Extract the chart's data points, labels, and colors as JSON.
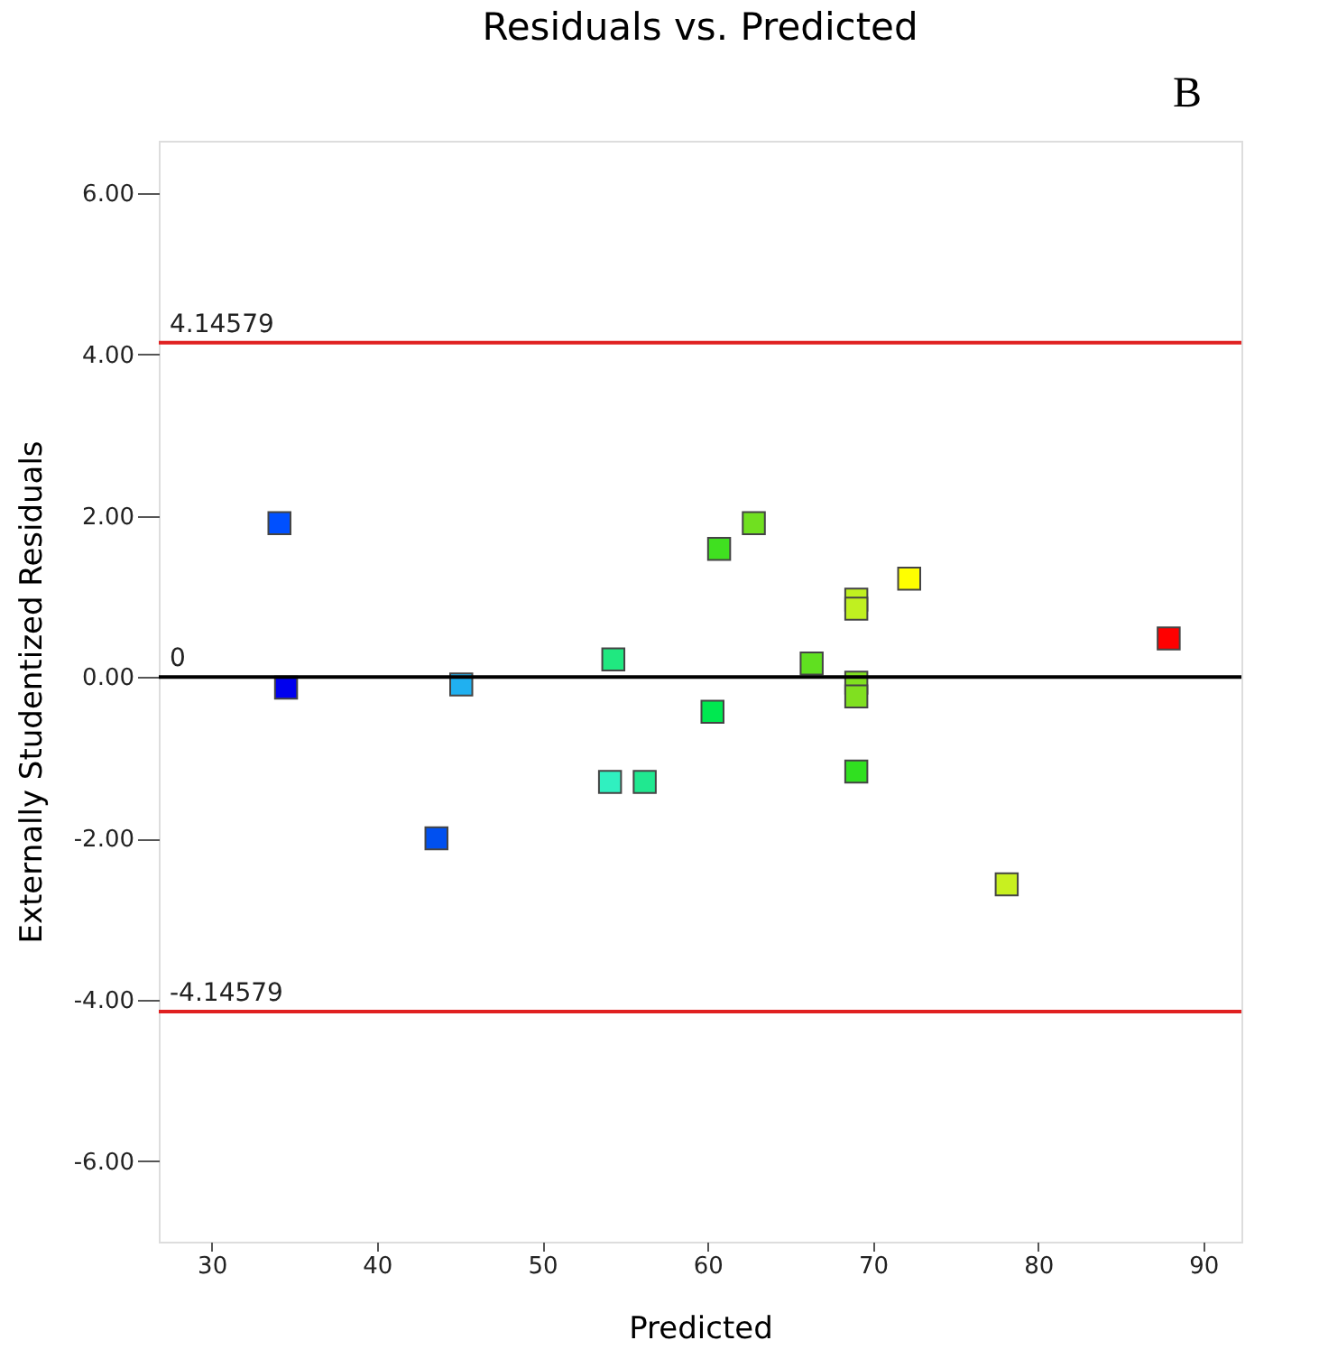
{
  "chart_data": {
    "type": "scatter",
    "title": "Residuals vs. Predicted",
    "xlabel": "Predicted",
    "ylabel": "Externally Studentized Residuals",
    "annotations": [
      "B"
    ],
    "marker": "square",
    "grid": false,
    "xlim": [
      26.8,
      92.3
    ],
    "xticks": [
      30,
      40,
      50,
      60,
      70,
      80,
      90
    ],
    "ylim": [
      -7.0,
      6.65
    ],
    "yticks": [
      {
        "value": -6,
        "label": "-6.00"
      },
      {
        "value": -4,
        "label": "-4.00"
      },
      {
        "value": -2,
        "label": "-2.00"
      },
      {
        "value": 0,
        "label": "0.00"
      },
      {
        "value": 2,
        "label": "2.00"
      },
      {
        "value": 4,
        "label": "4.00"
      },
      {
        "value": 6,
        "label": "6.00"
      }
    ],
    "ref_lines": [
      {
        "axis": "y",
        "value": 4.14579,
        "label": "4.14579",
        "color": "#e02020"
      },
      {
        "axis": "y",
        "value": 0,
        "label": "0",
        "color": "#000000"
      },
      {
        "axis": "y",
        "value": -4.14579,
        "label": "-4.14579",
        "color": "#e02020"
      }
    ],
    "series": [
      {
        "x": [
          34.1,
          34.5,
          45.1,
          43.6,
          54.3,
          54.1,
          56.2,
          60.3,
          60.7,
          62.8,
          66.3,
          69.0,
          69.0,
          69.0,
          69.0,
          69.0,
          72.2,
          78.1,
          87.9
        ],
        "values": [
          1.91,
          -0.13,
          -0.09,
          -2.0,
          0.22,
          -1.3,
          -1.3,
          -0.43,
          1.59,
          1.91,
          0.17,
          0.96,
          0.85,
          -0.07,
          -0.24,
          -1.17,
          1.22,
          -2.57,
          0.48
        ],
        "colors": [
          "#0050ff",
          "#0000ee",
          "#20b0f0",
          "#0050f0",
          "#20e880",
          "#30f0c0",
          "#20e890",
          "#00e850",
          "#40e020",
          "#70e020",
          "#60e020",
          "#c0f020",
          "#c0f020",
          "#80e020",
          "#80e020",
          "#30e020",
          "#ffff00",
          "#c8f020",
          "#ff0000"
        ]
      }
    ]
  }
}
